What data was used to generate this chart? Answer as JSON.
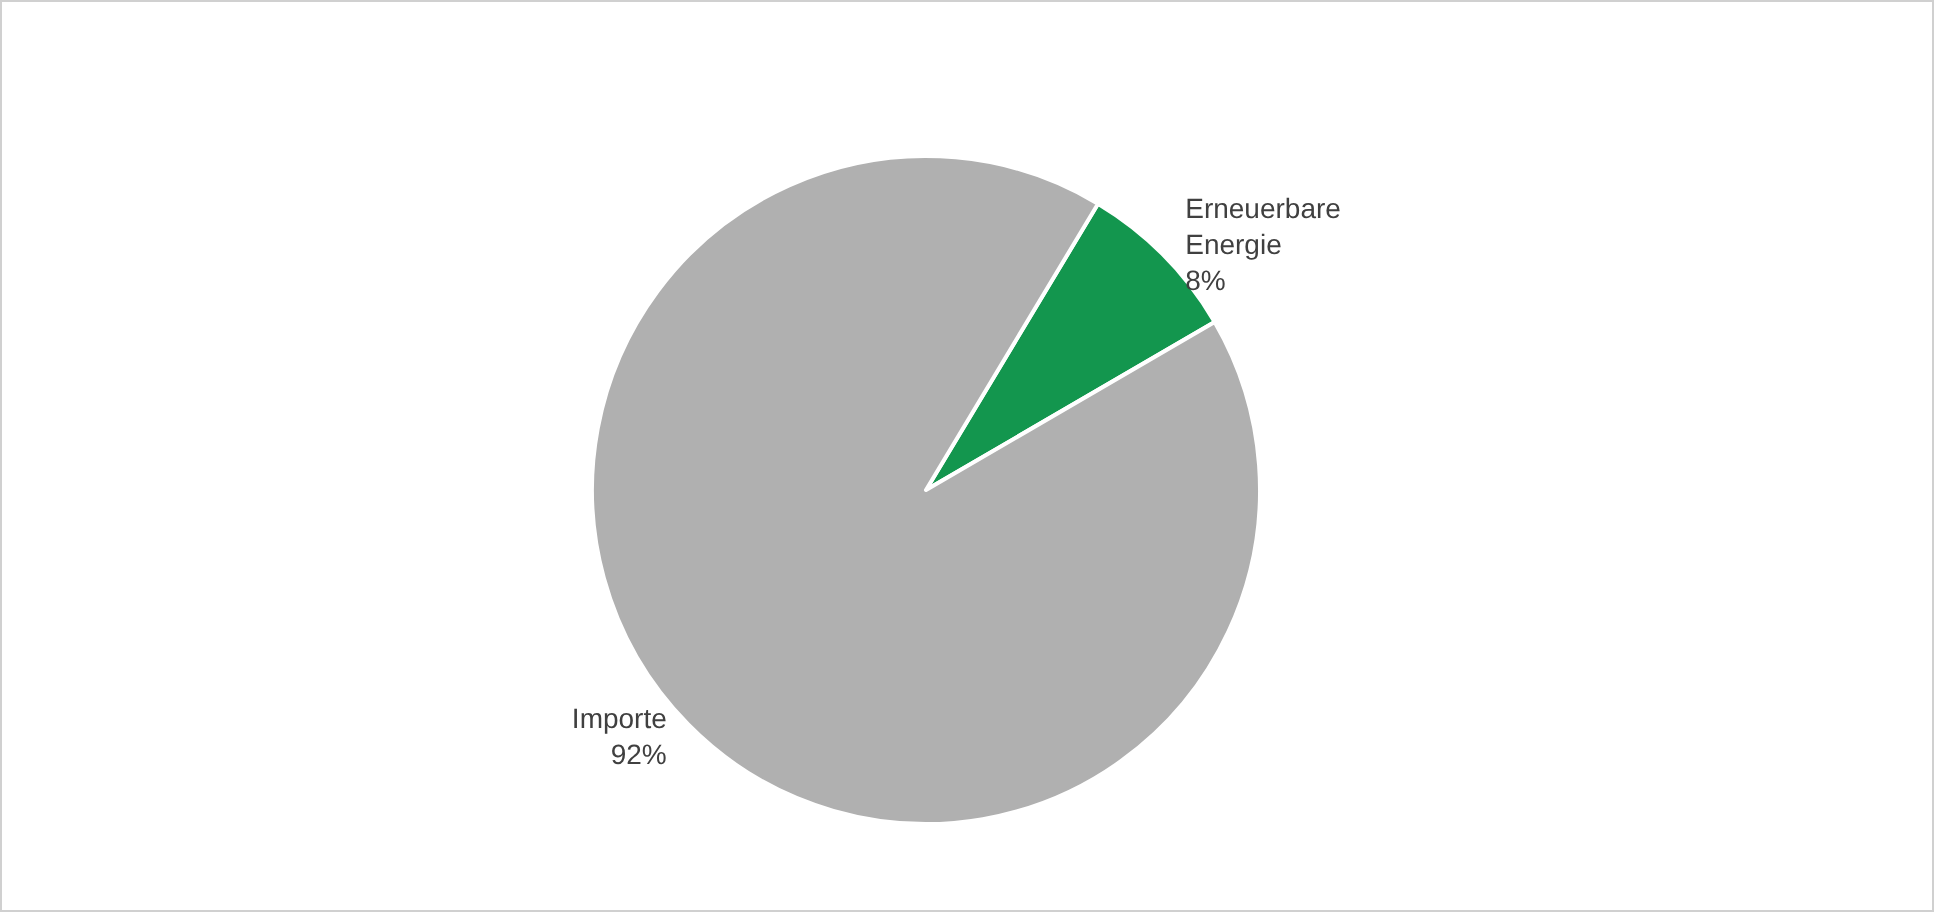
{
  "chart_data": {
    "type": "pie",
    "categories": [
      "Erneuerbare\nEnergie",
      "Importe"
    ],
    "values": [
      8,
      92
    ],
    "value_labels": [
      "8%",
      "92%"
    ],
    "colors": [
      "#13964e",
      "#b0b0b0"
    ],
    "legend": false
  }
}
